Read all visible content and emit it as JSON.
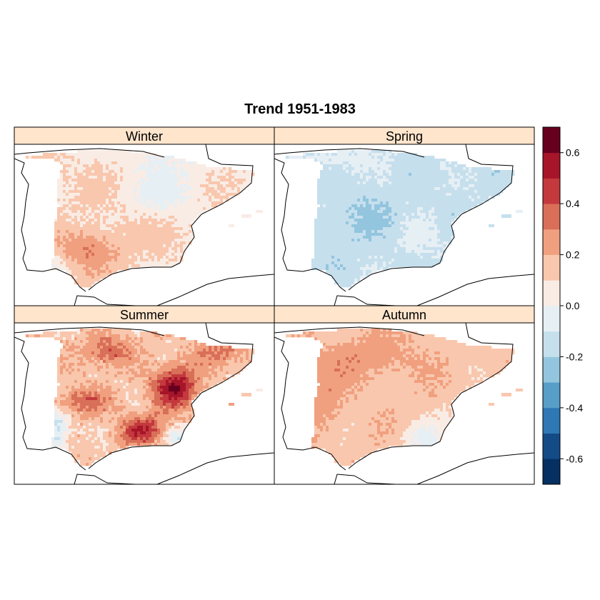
{
  "title": "Trend 1951-1983",
  "panels": [
    {
      "name": "Winter"
    },
    {
      "name": "Spring"
    },
    {
      "name": "Summer"
    },
    {
      "name": "Autumn"
    }
  ],
  "colorbar": {
    "min": -0.7,
    "max": 0.7,
    "step": 0.1,
    "tick_labels": [
      "-0.6",
      "-0.4",
      "-0.2",
      "0.0",
      "0.2",
      "0.4",
      "0.6"
    ],
    "colors": [
      "#053061",
      "#134b87",
      "#2e78b5",
      "#579ec9",
      "#93c5de",
      "#c6dfed",
      "#e6eff4",
      "#f9ece5",
      "#f9c7ad",
      "#f0a07f",
      "#d96f58",
      "#c3393d",
      "#a61529",
      "#67001f"
    ]
  },
  "chart_data": {
    "type": "heatmap",
    "title": "Trend 1951-1983",
    "panels": [
      "Winter",
      "Spring",
      "Summer",
      "Autumn"
    ],
    "zlim": [
      -0.7,
      0.7
    ],
    "legend": "right colorbar",
    "panel_summary": [
      {
        "panel": "Winter",
        "dominant_range": [
          0.0,
          0.2
        ],
        "max_approx": 0.35,
        "min_approx": -0.1
      },
      {
        "panel": "Spring",
        "dominant_range": [
          -0.2,
          -0.1
        ],
        "max_approx": 0.05,
        "min_approx": -0.3
      },
      {
        "panel": "Summer",
        "dominant_range": [
          0.1,
          0.4
        ],
        "max_approx": 0.65,
        "min_approx": -0.2
      },
      {
        "panel": "Autumn",
        "dominant_range": [
          0.1,
          0.3
        ],
        "max_approx": 0.35,
        "min_approx": -0.1
      }
    ]
  }
}
